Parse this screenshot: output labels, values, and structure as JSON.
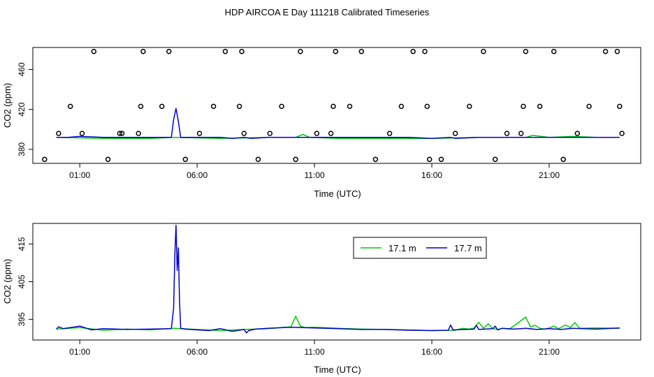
{
  "title": "HDP AIRCOA E  Day 111218  Calibrated Timeseries",
  "colors": {
    "series_17_1": "#00cc00",
    "series_17_7": "#0000cc",
    "flag_marker": "#000000",
    "axis": "#000000"
  },
  "chart_data": [
    {
      "type": "line",
      "title": "",
      "xlabel": "Time (UTC)",
      "ylabel": "CO2 (ppm)",
      "x_unit": "hours since 00:00 UTC",
      "xlim": [
        -1.0,
        24.9
      ],
      "ylim": [
        366,
        482
      ],
      "x_ticks": [
        1,
        6,
        11,
        16,
        21
      ],
      "x_tick_labels": [
        "01:00",
        "06:00",
        "11:00",
        "16:00",
        "21:00"
      ],
      "y_ticks": [
        380,
        420,
        460
      ],
      "y_tick_labels": [
        "380",
        "420",
        "460"
      ],
      "grid": false,
      "legend": "none",
      "series": [
        {
          "name": "17.1 m",
          "x": [
            0.0,
            2.0,
            4.0,
            5.0,
            7.0,
            9.0,
            10.2,
            10.5,
            10.8,
            12.0,
            14.0,
            16.0,
            18.0,
            19.0,
            20.0,
            20.3,
            21.0,
            22.0,
            23.0,
            24.0
          ],
          "y": [
            392,
            391,
            391,
            392,
            391,
            392,
            392,
            395,
            392,
            391,
            391,
            391,
            392,
            392,
            392,
            394,
            392,
            393,
            392,
            392
          ]
        },
        {
          "name": "17.7 m",
          "x": [
            0.0,
            0.5,
            1.0,
            2.0,
            3.0,
            4.0,
            4.9,
            5.0,
            5.1,
            5.2,
            5.3,
            5.4,
            6.0,
            7.0,
            7.5,
            8.0,
            8.3,
            9.0,
            10.0,
            11.0,
            12.0,
            13.0,
            14.0,
            15.0,
            16.0,
            16.8,
            17.0,
            18.0,
            19.0,
            20.0,
            21.0,
            22.0,
            23.0,
            24.0
          ],
          "y": [
            392,
            392,
            393,
            392,
            392,
            392,
            392,
            410,
            421,
            408,
            392,
            392,
            392,
            392,
            391,
            392,
            391,
            392,
            392,
            392,
            392,
            392,
            392,
            392,
            391,
            392,
            391,
            392,
            392,
            392,
            392,
            392,
            392,
            392
          ]
        }
      ],
      "flag_markers": {
        "x": [
          -0.5,
          0.1,
          0.6,
          1.1,
          1.6,
          2.2,
          2.7,
          2.8,
          3.5,
          3.6,
          3.7,
          4.5,
          4.8,
          5.5,
          6.1,
          6.7,
          7.2,
          7.8,
          7.9,
          8.0,
          8.6,
          9.1,
          9.6,
          10.2,
          10.4,
          11.1,
          11.7,
          11.8,
          11.9,
          12.5,
          13.0,
          13.6,
          14.2,
          14.7,
          15.2,
          15.7,
          15.8,
          15.9,
          16.4,
          17.0,
          17.6,
          18.2,
          18.7,
          19.2,
          19.8,
          19.9,
          20.0,
          20.6,
          21.2,
          21.6,
          22.2,
          22.7,
          23.4,
          23.9,
          24.0,
          24.1
        ],
        "y": [
          370,
          396,
          423,
          396,
          478,
          370,
          396,
          396,
          396,
          423,
          478,
          423,
          478,
          370,
          396,
          423,
          478,
          423,
          478,
          396,
          370,
          396,
          423,
          370,
          478,
          396,
          396,
          423,
          478,
          423,
          478,
          370,
          396,
          423,
          478,
          478,
          423,
          370,
          370,
          396,
          423,
          478,
          370,
          396,
          396,
          423,
          478,
          423,
          478,
          370,
          396,
          423,
          478,
          478,
          423,
          396
        ]
      }
    },
    {
      "type": "line",
      "title": "",
      "xlabel": "Time (UTC)",
      "ylabel": "CO2 (ppm)",
      "x_unit": "hours since 00:00 UTC",
      "xlim": [
        -1.0,
        24.9
      ],
      "ylim": [
        389.5,
        420.5
      ],
      "x_ticks": [
        1,
        6,
        11,
        16,
        21
      ],
      "x_tick_labels": [
        "01:00",
        "06:00",
        "11:00",
        "16:00",
        "21:00"
      ],
      "y_ticks": [
        395,
        405,
        415
      ],
      "y_tick_labels": [
        "395",
        "405",
        "415"
      ],
      "grid": false,
      "legend": "top-right",
      "legend_entries": [
        "17.1 m",
        "17.7 m"
      ],
      "series": [
        {
          "name": "17.1 m",
          "x": [
            0.0,
            1.0,
            2.0,
            3.0,
            4.0,
            5.0,
            6.0,
            7.0,
            8.0,
            9.0,
            10.0,
            10.2,
            10.4,
            10.6,
            11.0,
            12.0,
            13.0,
            14.0,
            15.0,
            16.0,
            17.0,
            17.3,
            17.6,
            17.8,
            18.0,
            18.2,
            18.4,
            18.6,
            18.8,
            19.0,
            19.3,
            19.6,
            20.0,
            20.2,
            20.4,
            20.6,
            20.8,
            21.0,
            21.2,
            21.4,
            21.7,
            21.9,
            22.1,
            22.3,
            23.0,
            24.0
          ],
          "y": [
            392.4,
            392.8,
            392.1,
            392.4,
            392.2,
            392.6,
            392.3,
            392.0,
            392.3,
            392.5,
            393.0,
            395.8,
            393.2,
            392.8,
            392.9,
            392.6,
            392.4,
            392.3,
            392.2,
            392.0,
            392.1,
            392.6,
            392.4,
            392.7,
            394.2,
            392.6,
            393.8,
            392.5,
            392.3,
            392.6,
            392.4,
            393.7,
            395.6,
            393.0,
            393.4,
            392.6,
            392.4,
            392.7,
            393.2,
            392.5,
            393.5,
            392.8,
            394.1,
            392.6,
            392.7,
            392.6
          ]
        },
        {
          "name": "17.7 m",
          "x": [
            0.0,
            0.1,
            0.3,
            1.0,
            1.5,
            2.0,
            3.0,
            4.0,
            4.9,
            5.0,
            5.05,
            5.1,
            5.15,
            5.2,
            5.25,
            5.3,
            5.5,
            6.0,
            6.5,
            7.0,
            7.5,
            8.0,
            8.1,
            8.2,
            8.5,
            9.0,
            10.0,
            11.0,
            12.0,
            13.0,
            14.0,
            15.0,
            16.0,
            16.7,
            16.8,
            16.9,
            17.5,
            17.8,
            17.9,
            18.0,
            18.6,
            18.7,
            18.8,
            19.0,
            19.5,
            20.0,
            20.5,
            21.0,
            21.5,
            22.0,
            23.0,
            24.0
          ],
          "y": [
            392.4,
            393.0,
            392.5,
            393.2,
            392.2,
            392.5,
            392.3,
            392.4,
            392.5,
            398.0,
            412.0,
            420.0,
            408.0,
            414.0,
            400.0,
            392.6,
            392.4,
            392.2,
            392.0,
            392.5,
            391.8,
            392.3,
            391.4,
            392.0,
            392.4,
            392.6,
            392.9,
            392.7,
            392.5,
            392.3,
            392.3,
            392.1,
            392.0,
            392.1,
            393.5,
            392.2,
            392.3,
            392.4,
            393.4,
            392.3,
            392.5,
            393.2,
            392.2,
            392.6,
            392.4,
            392.6,
            392.3,
            392.5,
            392.3,
            392.6,
            392.4,
            392.7
          ]
        }
      ]
    }
  ]
}
